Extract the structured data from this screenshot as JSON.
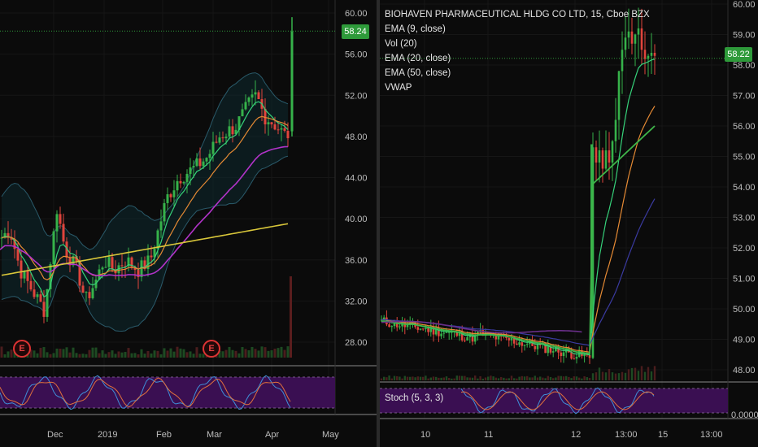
{
  "colors": {
    "up": "#36b24a",
    "down": "#e0443c",
    "ema_fast": "#36d27a",
    "ema_mid": "#e58a34",
    "ema_slow": "#3fb64a",
    "purple": "#b233c9",
    "sma_long": "#d8c63a",
    "bb": "#2a5a6a",
    "stoch_bg": "#3a0f52",
    "badge": "#2e9a3a"
  },
  "left_chart": {
    "price_axis": [
      "60.00",
      "56.00",
      "52.00",
      "48.00",
      "44.00",
      "40.00",
      "36.00",
      "32.00",
      "28.00"
    ],
    "time_axis": [
      "Dec",
      "2019",
      "Feb",
      "Mar",
      "Apr",
      "May"
    ],
    "last_price": "58.24",
    "earnings_markers": [
      "E",
      "E"
    ]
  },
  "right_chart": {
    "legend": [
      "BIOHAVEN PHARMACEUTICAL HLDG CO LTD, 15, Cboe BZX",
      "EMA (9, close)",
      "Vol (20)",
      "EMA (20, close)",
      "EMA (50, close)",
      "VWAP"
    ],
    "price_axis": [
      "60.00",
      "59.00",
      "58.00",
      "57.00",
      "56.00",
      "55.00",
      "54.00",
      "53.00",
      "52.00",
      "51.00",
      "50.00",
      "49.00",
      "48.00"
    ],
    "time_axis": [
      "10",
      "11",
      "12",
      "13:00",
      "15",
      "13:00"
    ],
    "last_price": "58.22",
    "stoch_label": "Stoch (5, 3, 3)",
    "stoch_axis_value": "0.0000"
  }
}
